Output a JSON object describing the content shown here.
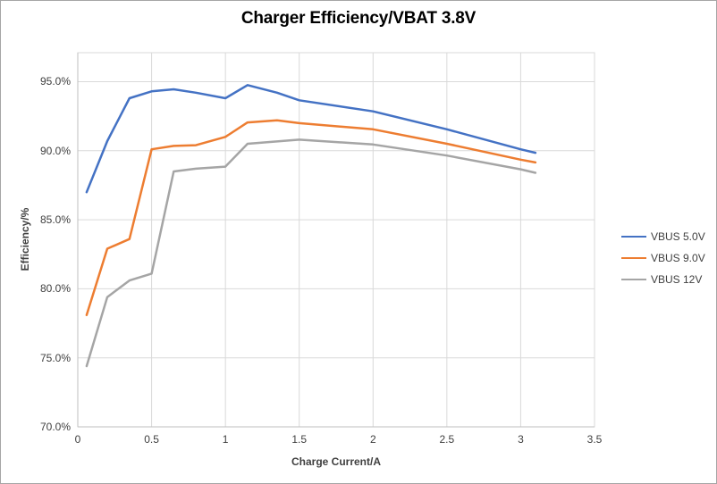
{
  "chart_data": {
    "type": "line",
    "title": "Charger Efficiency/VBAT 3.8V",
    "xlabel": "Charge Current/A",
    "ylabel": "Efficiency/%",
    "xlim": [
      0,
      3.5
    ],
    "ylim": [
      70,
      97.1
    ],
    "grid": true,
    "legend_position": "right",
    "x_ticks": [
      0,
      0.5,
      1,
      1.5,
      2,
      2.5,
      3,
      3.5
    ],
    "x_tick_labels": [
      "0",
      "0.5",
      "1",
      "1.5",
      "2",
      "2.5",
      "3",
      "3.5"
    ],
    "y_ticks": [
      70,
      75,
      80,
      85,
      90,
      95
    ],
    "y_tick_labels": [
      "70.0%",
      "75.0%",
      "80.0%",
      "85.0%",
      "90.0%",
      "95.0%"
    ],
    "gridline_color": "#d9d9d9",
    "axis_line_color": "#bfbfbf",
    "series": [
      {
        "name": "VBUS 5.0V",
        "color": "#4472c4",
        "points": [
          [
            0.06,
            87.0
          ],
          [
            0.2,
            90.7
          ],
          [
            0.35,
            93.8
          ],
          [
            0.5,
            94.3
          ],
          [
            0.65,
            94.45
          ],
          [
            0.8,
            94.2
          ],
          [
            1.0,
            93.8
          ],
          [
            1.15,
            94.75
          ],
          [
            1.35,
            94.2
          ],
          [
            1.5,
            93.65
          ],
          [
            2.0,
            92.85
          ],
          [
            2.5,
            91.55
          ],
          [
            3.0,
            90.1
          ],
          [
            3.1,
            89.85
          ]
        ]
      },
      {
        "name": "VBUS 9.0V",
        "color": "#ed7d31",
        "points": [
          [
            0.06,
            78.1
          ],
          [
            0.2,
            82.9
          ],
          [
            0.35,
            83.6
          ],
          [
            0.5,
            90.1
          ],
          [
            0.65,
            90.35
          ],
          [
            0.8,
            90.4
          ],
          [
            1.0,
            91.0
          ],
          [
            1.15,
            92.05
          ],
          [
            1.35,
            92.2
          ],
          [
            1.5,
            92.0
          ],
          [
            2.0,
            91.55
          ],
          [
            2.5,
            90.5
          ],
          [
            3.0,
            89.35
          ],
          [
            3.1,
            89.15
          ]
        ]
      },
      {
        "name": "VBUS 12V",
        "color": "#a5a5a5",
        "points": [
          [
            0.06,
            74.4
          ],
          [
            0.2,
            79.4
          ],
          [
            0.35,
            80.6
          ],
          [
            0.5,
            81.1
          ],
          [
            0.65,
            88.5
          ],
          [
            0.8,
            88.7
          ],
          [
            1.0,
            88.85
          ],
          [
            1.15,
            90.5
          ],
          [
            1.5,
            90.8
          ],
          [
            2.0,
            90.45
          ],
          [
            2.5,
            89.65
          ],
          [
            3.0,
            88.65
          ],
          [
            3.1,
            88.4
          ]
        ]
      }
    ]
  }
}
